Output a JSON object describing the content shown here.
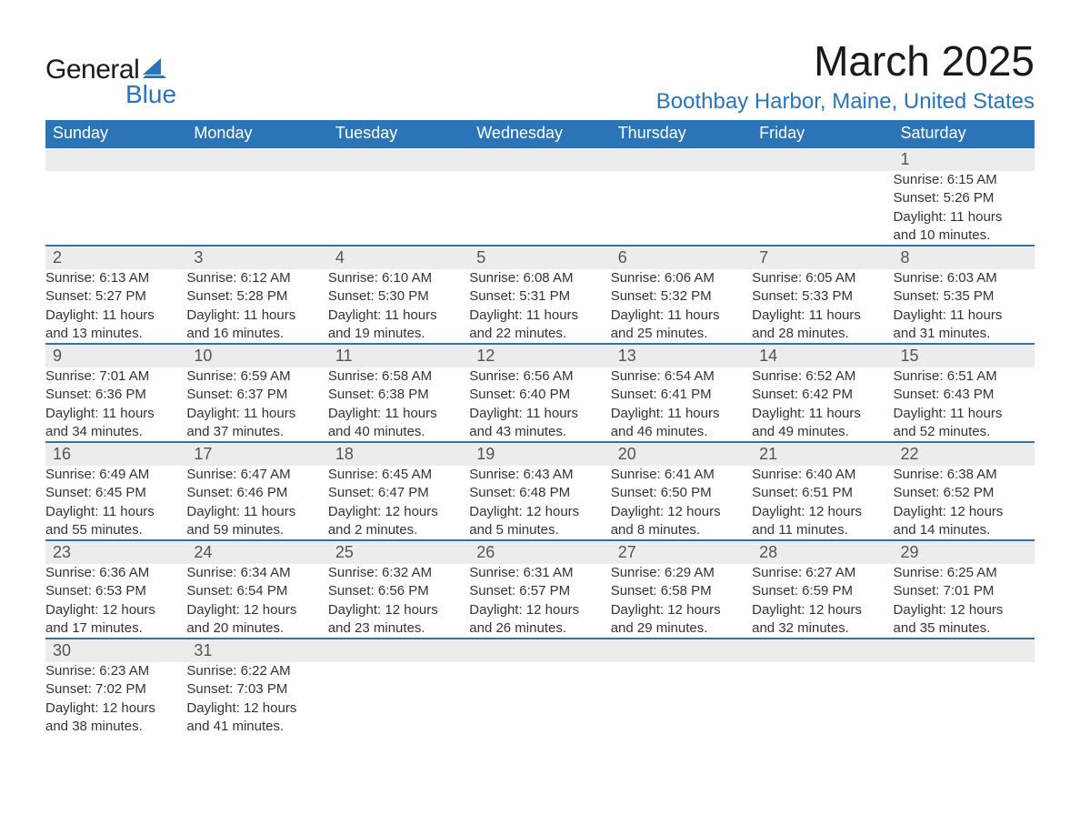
{
  "logo": {
    "word1": "General",
    "word2": "Blue",
    "sail_color": "#2b74b8"
  },
  "title": "March 2025",
  "location": "Boothbay Harbor, Maine, United States",
  "colors": {
    "header_bg": "#2b74b8",
    "header_text": "#ffffff",
    "daynum_bg": "#ececec",
    "daynum_text": "#555555",
    "detail_text": "#333333",
    "row_border": "#2b74b8",
    "page_bg": "#ffffff",
    "location_text": "#2b74b8"
  },
  "weekdays": [
    "Sunday",
    "Monday",
    "Tuesday",
    "Wednesday",
    "Thursday",
    "Friday",
    "Saturday"
  ],
  "weeks": [
    [
      null,
      null,
      null,
      null,
      null,
      null,
      {
        "n": "1",
        "sr": "Sunrise: 6:15 AM",
        "ss": "Sunset: 5:26 PM",
        "d1": "Daylight: 11 hours",
        "d2": "and 10 minutes."
      }
    ],
    [
      {
        "n": "2",
        "sr": "Sunrise: 6:13 AM",
        "ss": "Sunset: 5:27 PM",
        "d1": "Daylight: 11 hours",
        "d2": "and 13 minutes."
      },
      {
        "n": "3",
        "sr": "Sunrise: 6:12 AM",
        "ss": "Sunset: 5:28 PM",
        "d1": "Daylight: 11 hours",
        "d2": "and 16 minutes."
      },
      {
        "n": "4",
        "sr": "Sunrise: 6:10 AM",
        "ss": "Sunset: 5:30 PM",
        "d1": "Daylight: 11 hours",
        "d2": "and 19 minutes."
      },
      {
        "n": "5",
        "sr": "Sunrise: 6:08 AM",
        "ss": "Sunset: 5:31 PM",
        "d1": "Daylight: 11 hours",
        "d2": "and 22 minutes."
      },
      {
        "n": "6",
        "sr": "Sunrise: 6:06 AM",
        "ss": "Sunset: 5:32 PM",
        "d1": "Daylight: 11 hours",
        "d2": "and 25 minutes."
      },
      {
        "n": "7",
        "sr": "Sunrise: 6:05 AM",
        "ss": "Sunset: 5:33 PM",
        "d1": "Daylight: 11 hours",
        "d2": "and 28 minutes."
      },
      {
        "n": "8",
        "sr": "Sunrise: 6:03 AM",
        "ss": "Sunset: 5:35 PM",
        "d1": "Daylight: 11 hours",
        "d2": "and 31 minutes."
      }
    ],
    [
      {
        "n": "9",
        "sr": "Sunrise: 7:01 AM",
        "ss": "Sunset: 6:36 PM",
        "d1": "Daylight: 11 hours",
        "d2": "and 34 minutes."
      },
      {
        "n": "10",
        "sr": "Sunrise: 6:59 AM",
        "ss": "Sunset: 6:37 PM",
        "d1": "Daylight: 11 hours",
        "d2": "and 37 minutes."
      },
      {
        "n": "11",
        "sr": "Sunrise: 6:58 AM",
        "ss": "Sunset: 6:38 PM",
        "d1": "Daylight: 11 hours",
        "d2": "and 40 minutes."
      },
      {
        "n": "12",
        "sr": "Sunrise: 6:56 AM",
        "ss": "Sunset: 6:40 PM",
        "d1": "Daylight: 11 hours",
        "d2": "and 43 minutes."
      },
      {
        "n": "13",
        "sr": "Sunrise: 6:54 AM",
        "ss": "Sunset: 6:41 PM",
        "d1": "Daylight: 11 hours",
        "d2": "and 46 minutes."
      },
      {
        "n": "14",
        "sr": "Sunrise: 6:52 AM",
        "ss": "Sunset: 6:42 PM",
        "d1": "Daylight: 11 hours",
        "d2": "and 49 minutes."
      },
      {
        "n": "15",
        "sr": "Sunrise: 6:51 AM",
        "ss": "Sunset: 6:43 PM",
        "d1": "Daylight: 11 hours",
        "d2": "and 52 minutes."
      }
    ],
    [
      {
        "n": "16",
        "sr": "Sunrise: 6:49 AM",
        "ss": "Sunset: 6:45 PM",
        "d1": "Daylight: 11 hours",
        "d2": "and 55 minutes."
      },
      {
        "n": "17",
        "sr": "Sunrise: 6:47 AM",
        "ss": "Sunset: 6:46 PM",
        "d1": "Daylight: 11 hours",
        "d2": "and 59 minutes."
      },
      {
        "n": "18",
        "sr": "Sunrise: 6:45 AM",
        "ss": "Sunset: 6:47 PM",
        "d1": "Daylight: 12 hours",
        "d2": "and 2 minutes."
      },
      {
        "n": "19",
        "sr": "Sunrise: 6:43 AM",
        "ss": "Sunset: 6:48 PM",
        "d1": "Daylight: 12 hours",
        "d2": "and 5 minutes."
      },
      {
        "n": "20",
        "sr": "Sunrise: 6:41 AM",
        "ss": "Sunset: 6:50 PM",
        "d1": "Daylight: 12 hours",
        "d2": "and 8 minutes."
      },
      {
        "n": "21",
        "sr": "Sunrise: 6:40 AM",
        "ss": "Sunset: 6:51 PM",
        "d1": "Daylight: 12 hours",
        "d2": "and 11 minutes."
      },
      {
        "n": "22",
        "sr": "Sunrise: 6:38 AM",
        "ss": "Sunset: 6:52 PM",
        "d1": "Daylight: 12 hours",
        "d2": "and 14 minutes."
      }
    ],
    [
      {
        "n": "23",
        "sr": "Sunrise: 6:36 AM",
        "ss": "Sunset: 6:53 PM",
        "d1": "Daylight: 12 hours",
        "d2": "and 17 minutes."
      },
      {
        "n": "24",
        "sr": "Sunrise: 6:34 AM",
        "ss": "Sunset: 6:54 PM",
        "d1": "Daylight: 12 hours",
        "d2": "and 20 minutes."
      },
      {
        "n": "25",
        "sr": "Sunrise: 6:32 AM",
        "ss": "Sunset: 6:56 PM",
        "d1": "Daylight: 12 hours",
        "d2": "and 23 minutes."
      },
      {
        "n": "26",
        "sr": "Sunrise: 6:31 AM",
        "ss": "Sunset: 6:57 PM",
        "d1": "Daylight: 12 hours",
        "d2": "and 26 minutes."
      },
      {
        "n": "27",
        "sr": "Sunrise: 6:29 AM",
        "ss": "Sunset: 6:58 PM",
        "d1": "Daylight: 12 hours",
        "d2": "and 29 minutes."
      },
      {
        "n": "28",
        "sr": "Sunrise: 6:27 AM",
        "ss": "Sunset: 6:59 PM",
        "d1": "Daylight: 12 hours",
        "d2": "and 32 minutes."
      },
      {
        "n": "29",
        "sr": "Sunrise: 6:25 AM",
        "ss": "Sunset: 7:01 PM",
        "d1": "Daylight: 12 hours",
        "d2": "and 35 minutes."
      }
    ],
    [
      {
        "n": "30",
        "sr": "Sunrise: 6:23 AM",
        "ss": "Sunset: 7:02 PM",
        "d1": "Daylight: 12 hours",
        "d2": "and 38 minutes."
      },
      {
        "n": "31",
        "sr": "Sunrise: 6:22 AM",
        "ss": "Sunset: 7:03 PM",
        "d1": "Daylight: 12 hours",
        "d2": "and 41 minutes."
      },
      null,
      null,
      null,
      null,
      null
    ]
  ]
}
